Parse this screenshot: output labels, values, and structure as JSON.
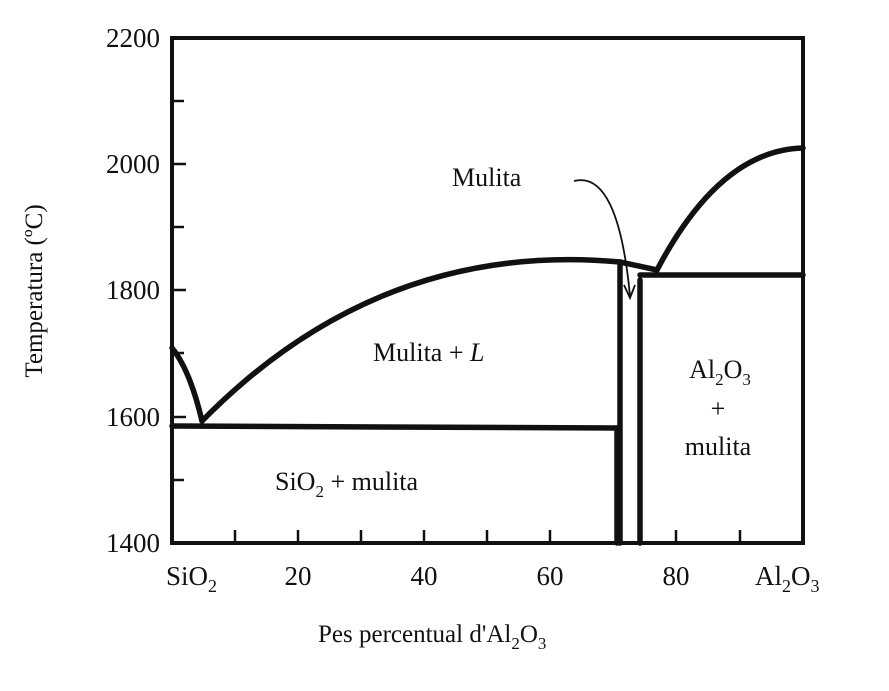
{
  "diagram": {
    "y_axis_label": "Temperatura (ºC)",
    "x_axis_label_prefix": "Pes percentual d'Al",
    "x_axis_label_sub1": "2",
    "x_axis_label_mid": "O",
    "x_axis_label_sub2": "3",
    "y_ticks": [
      "1400",
      "1600",
      "1800",
      "2000",
      "2200"
    ],
    "x_ticks": [
      "20",
      "40",
      "60",
      "80"
    ],
    "x_left_end": {
      "base": "SiO",
      "sub": "2"
    },
    "x_right_end": {
      "base1": "Al",
      "sub1": "2",
      "base2": "O",
      "sub2": "3"
    },
    "regions": {
      "liquid_mullite": {
        "text": "Mulita  +  ",
        "italic": "L"
      },
      "silica_mullite": {
        "base": "SiO",
        "sub": "2",
        "rest": " + mulita"
      },
      "alumina_line1": {
        "base1": "Al",
        "sub1": "2",
        "base2": "O",
        "sub2": "3"
      },
      "alumina_line2": "+",
      "alumina_line3": "mulita",
      "mullite_callout": "Mulita"
    }
  },
  "chart_data": {
    "type": "phase-diagram",
    "x_unit": "wt% Al2O3",
    "y_unit": "°C",
    "xlim": [
      0,
      100
    ],
    "ylim": [
      1400,
      2200
    ],
    "eutectic_left": {
      "x": 5,
      "y": 1587
    },
    "sio2_melting_point": {
      "x": 0,
      "y": 1710
    },
    "liquidus_left": [
      [
        5,
        1587
      ],
      [
        10,
        1650
      ],
      [
        20,
        1735
      ],
      [
        30,
        1790
      ],
      [
        40,
        1822
      ],
      [
        50,
        1840
      ],
      [
        60,
        1848
      ],
      [
        68,
        1848
      ],
      [
        71.5,
        1845
      ]
    ],
    "mullite_region_x": [
      71.5,
      75.5
    ],
    "mullite_peritectic": {
      "x": 77,
      "y": 1828
    },
    "eutectic_right_isotherm": {
      "x_range": [
        75.5,
        100
      ],
      "y": 1826
    },
    "liquidus_right": [
      [
        77,
        1828
      ],
      [
        85,
        1920
      ],
      [
        92,
        1990
      ],
      [
        100,
        2023
      ]
    ],
    "isotherm_low": {
      "x_range": [
        0,
        71.5
      ],
      "y": 1587
    }
  }
}
